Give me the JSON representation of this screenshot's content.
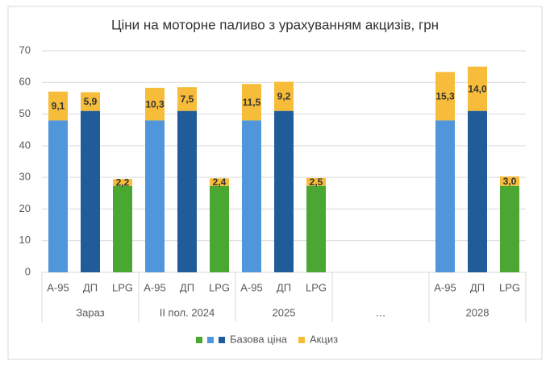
{
  "chart_data": {
    "type": "stacked_bar",
    "title": "Ціни на моторне паливо з урахуванням акцизів, грн",
    "groups": [
      "Зараз",
      "ІІ пол. 2024",
      "2025",
      "…",
      "2028"
    ],
    "categories": [
      "А-95",
      "ДП",
      "LPG",
      "А-95",
      "ДП",
      "LPG",
      "А-95",
      "ДП",
      "LPG",
      null,
      null,
      null,
      "А-95",
      "ДП",
      "LPG"
    ],
    "series": [
      {
        "name": "Базова ціна",
        "legend_colors": [
          "#4aa832",
          "#4f96db",
          "#1f5c99"
        ],
        "colors": [
          "#4f96db",
          "#1f5c99",
          "#4aa832",
          "#4f96db",
          "#1f5c99",
          "#4aa832",
          "#4f96db",
          "#1f5c99",
          "#4aa832",
          null,
          null,
          null,
          "#4f96db",
          "#1f5c99",
          "#4aa832"
        ],
        "values": [
          48,
          51,
          27.3,
          48,
          51,
          27.3,
          48,
          51,
          27.3,
          null,
          null,
          null,
          48,
          51,
          27.3
        ]
      },
      {
        "name": "Акциз",
        "color": "#f7bd3a",
        "values": [
          9.1,
          5.9,
          2.2,
          10.3,
          7.5,
          2.4,
          11.5,
          9.2,
          2.5,
          null,
          null,
          null,
          15.3,
          14.0,
          3.0
        ],
        "value_labels": [
          "9,1",
          "5,9",
          "2,2",
          "10,3",
          "7,5",
          "2,4",
          "11,5",
          "9,2",
          "2,5",
          null,
          null,
          null,
          "15,3",
          "14,0",
          "3,0"
        ]
      }
    ],
    "ylim": [
      0,
      70
    ],
    "yticks": [
      0,
      10,
      20,
      30,
      40,
      50,
      60,
      70
    ],
    "grid": true,
    "legend": "bottom"
  }
}
